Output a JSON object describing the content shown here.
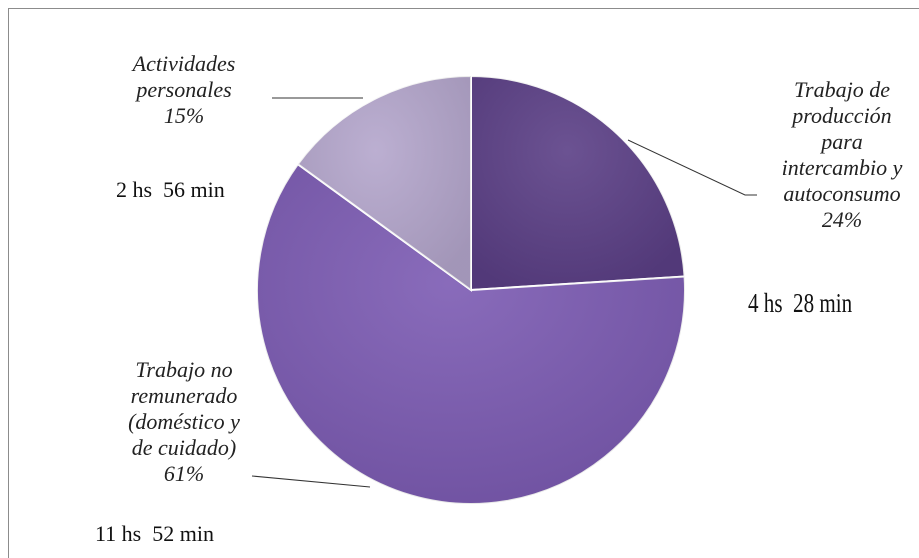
{
  "chart_data": {
    "type": "pie",
    "title": "",
    "slices": [
      {
        "label": "Trabajo de producción para intercambio y autoconsumo",
        "percent_label": "24%",
        "value": 24,
        "time": "4 hs  28 min",
        "color": "#5b3f86"
      },
      {
        "label": "Trabajo no remunerado (doméstico y de cuidado)",
        "percent_label": "61%",
        "value": 61,
        "time": "11 hs  52 min",
        "color": "#7c5bb3"
      },
      {
        "label": "Actividades personales",
        "percent_label": "15%",
        "value": 15,
        "time": "2 hs  56 min",
        "color": "#b4a6cc"
      }
    ],
    "label_lines": {
      "s0": "Trabajo de\nproducción\npara\nintercambio y\nautoconsumo\n24%",
      "s1": "Trabajo no\nremunerado\n(doméstico y\nde cuidado)\n61%",
      "s2": "Actividades\npersonales\n15%"
    },
    "legend": "none",
    "start_angle": "12 o'clock, clockwise"
  }
}
